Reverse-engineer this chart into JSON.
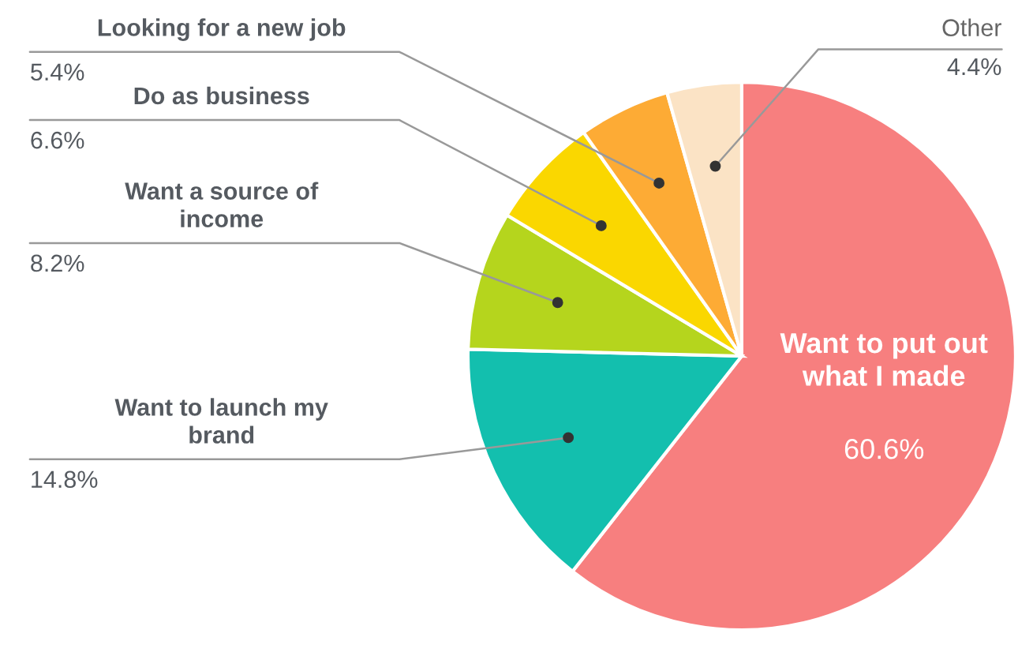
{
  "chart_data": {
    "type": "pie",
    "categories": [
      "Want to put out\nwhat I made",
      "Want to launch my\nbrand",
      "Want a source of\nincome",
      "Do as business",
      "Looking for a new job",
      "Other"
    ],
    "values": [
      60.6,
      14.8,
      8.2,
      6.6,
      5.4,
      4.4
    ],
    "value_labels": [
      "60.6%",
      "14.8%",
      "8.2%",
      "6.6%",
      "5.4%",
      "4.4%"
    ],
    "colors": [
      "#f77f7f",
      "#13bfae",
      "#b5d51d",
      "#fad700",
      "#fdab35",
      "#fbe3c5"
    ],
    "legend": false
  }
}
